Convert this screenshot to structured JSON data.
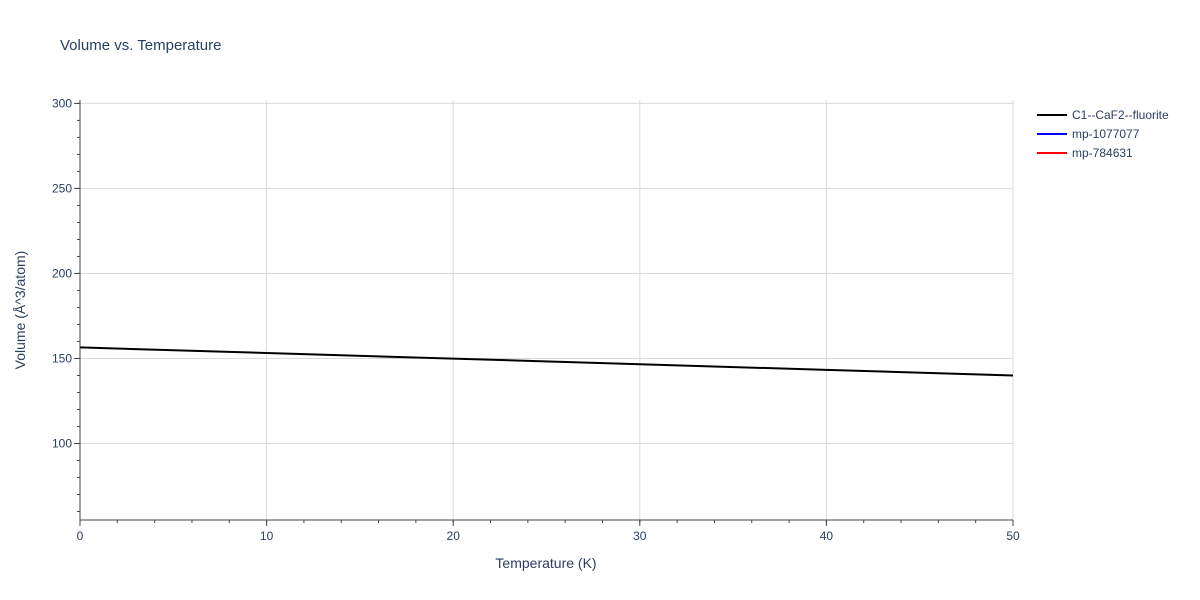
{
  "chart_data": {
    "type": "line",
    "title": "Volume vs. Temperature",
    "xlabel": "Temperature (K)",
    "ylabel": "Volume (Å^3/atom)",
    "xlim": [
      0,
      50
    ],
    "ylim": [
      55,
      302
    ],
    "x_ticks": [
      0,
      10,
      20,
      30,
      40,
      50
    ],
    "y_ticks": [
      100,
      150,
      200,
      250,
      300
    ],
    "x_tick_labels": [
      "0",
      "10",
      "20",
      "30",
      "40",
      "50"
    ],
    "y_tick_labels": [
      "100",
      "150",
      "200",
      "250",
      "300"
    ],
    "grid": true,
    "legend_position": "top-right outside",
    "series": [
      {
        "name": "C1--CaF2--fluorite",
        "color": "#000000",
        "x": [
          0,
          10,
          20,
          30,
          40,
          50
        ],
        "y": [
          156.5,
          153.2,
          149.9,
          146.6,
          143.3,
          140.0
        ]
      },
      {
        "name": "mp-1077077",
        "color": "#0000ff",
        "x": [],
        "y": []
      },
      {
        "name": "mp-784631",
        "color": "#ff0000",
        "x": [],
        "y": []
      }
    ]
  }
}
